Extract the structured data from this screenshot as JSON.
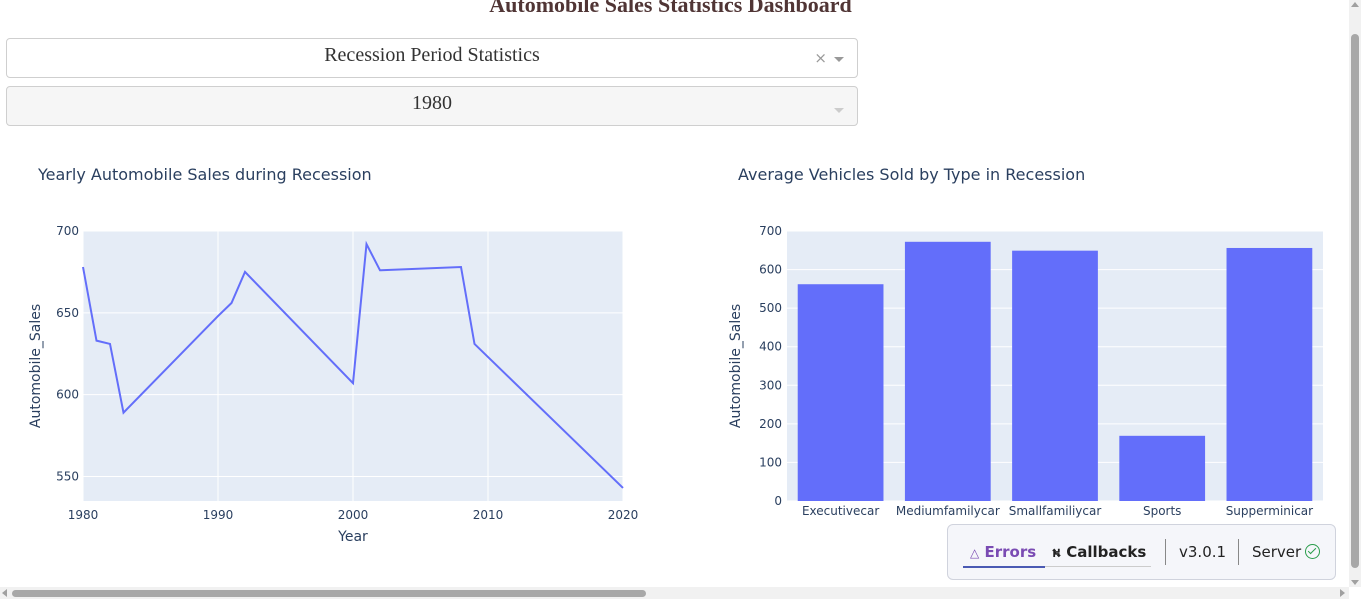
{
  "page": {
    "title": "Automobile Sales Statistics Dashboard"
  },
  "controls": {
    "statistics_dropdown": {
      "value": "Recession Period Statistics",
      "clear_icon": "×"
    },
    "year_dropdown": {
      "value": "1980"
    }
  },
  "charts": {
    "line_title": "Yearly Automobile Sales during Recession",
    "bar_title": "Average Vehicles Sold by Type in Recession"
  },
  "chart_data": [
    {
      "type": "line",
      "title": "Yearly Automobile Sales during Recession",
      "xlabel": "Year",
      "ylabel": "Automobile_Sales",
      "xlim": [
        1980,
        2020
      ],
      "ylim": [
        535,
        700
      ],
      "x_ticks": [
        "1980",
        "1990",
        "2000",
        "2010",
        "2020"
      ],
      "y_ticks": [
        "550",
        "600",
        "650",
        "700"
      ],
      "x": [
        1980,
        1981,
        1982,
        1983,
        1990,
        1991,
        1992,
        2000,
        2001,
        2002,
        2008,
        2009,
        2020
      ],
      "values": [
        678,
        633,
        631,
        589,
        648,
        656,
        675,
        607,
        692,
        676,
        678,
        631,
        543
      ],
      "color": "#636efa"
    },
    {
      "type": "bar",
      "title": "Average Vehicles Sold by Type in Recession",
      "xlabel": "",
      "ylabel": "Automobile_Sales",
      "ylim": [
        0,
        700
      ],
      "y_ticks": [
        "0",
        "100",
        "200",
        "300",
        "400",
        "500",
        "600",
        "700"
      ],
      "categories": [
        "Executivecar",
        "Mediumfamilycar",
        "Smallfamiliycar",
        "Sports",
        "Supperminicar"
      ],
      "values": [
        562,
        672,
        649,
        169,
        656
      ],
      "color": "#636efa"
    }
  ],
  "devtools": {
    "errors_label": "Errors",
    "callbacks_label": "Callbacks",
    "version": "v3.0.1",
    "server_label": "Server"
  },
  "colors": {
    "plot_bg": "#e5ecf6",
    "trace": "#636efa",
    "title_text": "#503535"
  }
}
